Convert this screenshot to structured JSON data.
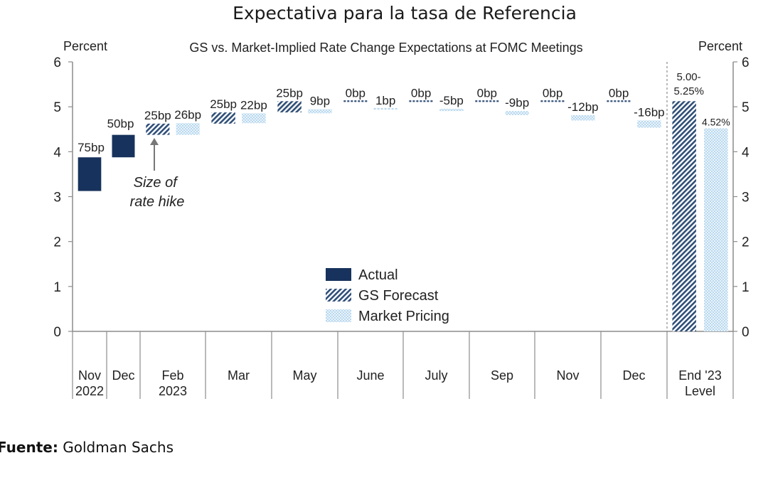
{
  "page_title": "Expectativa para la tasa de Referencia",
  "source": {
    "label": "Fuente:",
    "value": "Goldman Sachs"
  },
  "colors": {
    "actual": "#17325c",
    "forecast": "#2f4f78",
    "market": "#b9d8ef",
    "axis": "#8c8c8c"
  },
  "chart_data": {
    "type": "bar",
    "title": "GS vs. Market-Implied Rate Change Expectations at FOMC Meetings",
    "ylabel_left": "Percent",
    "ylabel_right": "Percent",
    "ylim": [
      0,
      6
    ],
    "yticks": [
      0,
      1,
      2,
      3,
      4,
      5,
      6
    ],
    "grid": false,
    "legend_position": "center",
    "legend": [
      "Actual",
      "GS Forecast",
      "Market Pricing"
    ],
    "annotation": "Size of rate hike",
    "categories": [
      [
        "Nov",
        "2022"
      ],
      [
        "Dec",
        ""
      ],
      [
        "Feb",
        "2023"
      ],
      [
        "Mar",
        ""
      ],
      [
        "May",
        ""
      ],
      [
        "June",
        ""
      ],
      [
        "July",
        ""
      ],
      [
        "Sep",
        ""
      ],
      [
        "Nov",
        ""
      ],
      [
        "Dec",
        ""
      ],
      [
        "End '23",
        "Level"
      ]
    ],
    "changes": [
      {
        "meeting": "Nov 2022",
        "series": "Actual",
        "from": 3.125,
        "to": 3.875,
        "label": "75bp"
      },
      {
        "meeting": "Dec",
        "series": "Actual",
        "from": 3.875,
        "to": 4.375,
        "label": "50bp"
      },
      {
        "meeting": "Feb 2023",
        "series": "GS Forecast",
        "from": 4.375,
        "to": 4.625,
        "label": "25bp"
      },
      {
        "meeting": "Feb 2023",
        "series": "Market Pricing",
        "from": 4.375,
        "to": 4.635,
        "label": "26bp"
      },
      {
        "meeting": "Mar",
        "series": "GS Forecast",
        "from": 4.625,
        "to": 4.875,
        "label": "25bp"
      },
      {
        "meeting": "Mar",
        "series": "Market Pricing",
        "from": 4.635,
        "to": 4.855,
        "label": "22bp"
      },
      {
        "meeting": "May",
        "series": "GS Forecast",
        "from": 4.875,
        "to": 5.125,
        "label": "25bp"
      },
      {
        "meeting": "May",
        "series": "Market Pricing",
        "from": 4.855,
        "to": 4.945,
        "label": "9bp"
      },
      {
        "meeting": "June",
        "series": "GS Forecast",
        "from": 5.125,
        "to": 5.125,
        "label": "0bp"
      },
      {
        "meeting": "June",
        "series": "Market Pricing",
        "from": 4.945,
        "to": 4.955,
        "label": "1bp"
      },
      {
        "meeting": "July",
        "series": "GS Forecast",
        "from": 5.125,
        "to": 5.125,
        "label": "0bp"
      },
      {
        "meeting": "July",
        "series": "Market Pricing",
        "from": 4.955,
        "to": 4.905,
        "label": "-5bp"
      },
      {
        "meeting": "Sep",
        "series": "GS Forecast",
        "from": 5.125,
        "to": 5.125,
        "label": "0bp"
      },
      {
        "meeting": "Sep",
        "series": "Market Pricing",
        "from": 4.905,
        "to": 4.815,
        "label": "-9bp"
      },
      {
        "meeting": "Nov",
        "series": "GS Forecast",
        "from": 5.125,
        "to": 5.125,
        "label": "0bp"
      },
      {
        "meeting": "Nov",
        "series": "Market Pricing",
        "from": 4.815,
        "to": 4.695,
        "label": "-12bp"
      },
      {
        "meeting": "Dec",
        "series": "GS Forecast",
        "from": 5.125,
        "to": 5.125,
        "label": "0bp"
      },
      {
        "meeting": "Dec",
        "series": "Market Pricing",
        "from": 4.695,
        "to": 4.535,
        "label": "-16bp"
      }
    ],
    "end_level": [
      {
        "series": "GS Forecast",
        "value": 5.125,
        "label": "5.00-5.25%"
      },
      {
        "series": "Market Pricing",
        "value": 4.52,
        "label": "4.52%"
      }
    ]
  }
}
